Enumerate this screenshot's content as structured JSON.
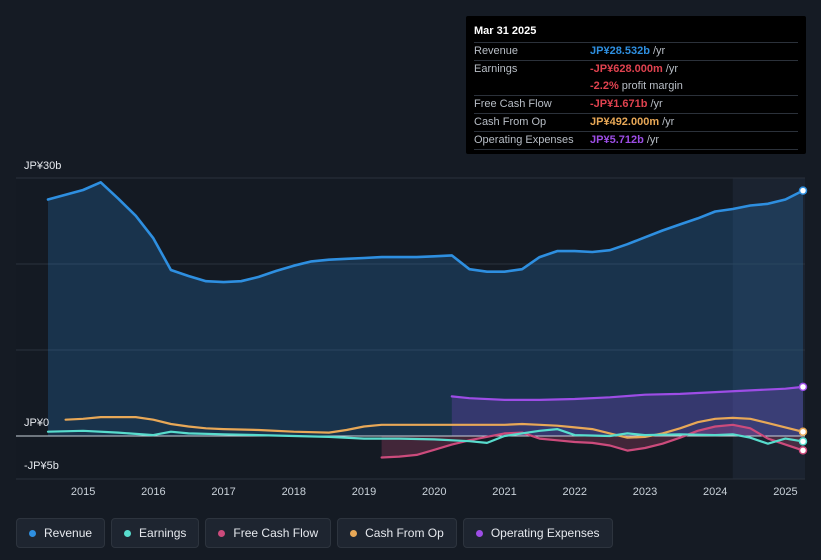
{
  "tooltip": {
    "date": "Mar 31 2025",
    "rows": [
      {
        "label": "Revenue",
        "value": "JP¥28.532b",
        "unit": "/yr",
        "color": "#2e8fe0"
      },
      {
        "label": "Earnings",
        "value": "-JP¥628.000m",
        "unit": "/yr",
        "color": "#e0424f"
      },
      {
        "label": "",
        "value": "-2.2%",
        "unit": "profit margin",
        "color": "#e0424f"
      },
      {
        "label": "Free Cash Flow",
        "value": "-JP¥1.671b",
        "unit": "/yr",
        "color": "#e0424f"
      },
      {
        "label": "Cash From Op",
        "value": "JP¥492.000m",
        "unit": "/yr",
        "color": "#e8a857"
      },
      {
        "label": "Operating Expenses",
        "value": "JP¥5.712b",
        "unit": "/yr",
        "color": "#9d4de6"
      }
    ]
  },
  "legend": [
    {
      "label": "Revenue",
      "color": "#2e8fe0"
    },
    {
      "label": "Earnings",
      "color": "#58dccd"
    },
    {
      "label": "Free Cash Flow",
      "color": "#cc4b7c"
    },
    {
      "label": "Cash From Op",
      "color": "#e8a857"
    },
    {
      "label": "Operating Expenses",
      "color": "#9d4de6"
    }
  ],
  "chart_data": {
    "type": "area",
    "title": "",
    "xlabel": "",
    "ylabel": "",
    "y_tick_labels": [
      "JP¥30b",
      "JP¥0",
      "-JP¥5b"
    ],
    "y_ticks": [
      30,
      0,
      -5
    ],
    "ylim": [
      -5,
      30
    ],
    "xlim": [
      2014.5,
      2025.25
    ],
    "x_ticks": [
      2015,
      2016,
      2017,
      2018,
      2019,
      2020,
      2021,
      2022,
      2023,
      2024,
      2025
    ],
    "x_tick_labels": [
      "2015",
      "2016",
      "2017",
      "2018",
      "2019",
      "2020",
      "2021",
      "2022",
      "2023",
      "2024",
      "2025"
    ],
    "forecast_start": 2024.25,
    "series": [
      {
        "name": "Revenue",
        "color": "#2e8fe0",
        "area": true,
        "points": [
          [
            2014.5,
            27.5
          ],
          [
            2015.0,
            28.6
          ],
          [
            2015.25,
            29.5
          ],
          [
            2015.5,
            27.6
          ],
          [
            2015.75,
            25.6
          ],
          [
            2016.0,
            23.0
          ],
          [
            2016.25,
            19.3
          ],
          [
            2016.5,
            18.6
          ],
          [
            2016.75,
            18.0
          ],
          [
            2017.0,
            17.9
          ],
          [
            2017.25,
            18.0
          ],
          [
            2017.5,
            18.5
          ],
          [
            2017.75,
            19.2
          ],
          [
            2018.0,
            19.8
          ],
          [
            2018.25,
            20.3
          ],
          [
            2018.5,
            20.5
          ],
          [
            2018.75,
            20.6
          ],
          [
            2019.0,
            20.7
          ],
          [
            2019.25,
            20.8
          ],
          [
            2019.5,
            20.8
          ],
          [
            2019.75,
            20.8
          ],
          [
            2020.0,
            20.9
          ],
          [
            2020.25,
            21.0
          ],
          [
            2020.5,
            19.4
          ],
          [
            2020.75,
            19.1
          ],
          [
            2021.0,
            19.1
          ],
          [
            2021.25,
            19.4
          ],
          [
            2021.5,
            20.8
          ],
          [
            2021.75,
            21.5
          ],
          [
            2022.0,
            21.5
          ],
          [
            2022.25,
            21.4
          ],
          [
            2022.5,
            21.6
          ],
          [
            2022.75,
            22.3
          ],
          [
            2023.0,
            23.1
          ],
          [
            2023.25,
            23.9
          ],
          [
            2023.5,
            24.6
          ],
          [
            2023.75,
            25.3
          ],
          [
            2024.0,
            26.1
          ],
          [
            2024.25,
            26.4
          ],
          [
            2024.5,
            26.8
          ],
          [
            2024.75,
            27.0
          ],
          [
            2025.0,
            27.5
          ],
          [
            2025.25,
            28.532
          ]
        ]
      },
      {
        "name": "Earnings",
        "color": "#58dccd",
        "area": false,
        "points": [
          [
            2014.5,
            0.5
          ],
          [
            2015.0,
            0.6
          ],
          [
            2015.5,
            0.4
          ],
          [
            2016.0,
            0.1
          ],
          [
            2016.25,
            0.5
          ],
          [
            2016.5,
            0.3
          ],
          [
            2017.0,
            0.2
          ],
          [
            2017.5,
            0.1
          ],
          [
            2018.0,
            0.0
          ],
          [
            2018.5,
            -0.1
          ],
          [
            2019.0,
            -0.3
          ],
          [
            2019.5,
            -0.3
          ],
          [
            2020.0,
            -0.4
          ],
          [
            2020.5,
            -0.6
          ],
          [
            2020.75,
            -0.8
          ],
          [
            2021.0,
            0.0
          ],
          [
            2021.5,
            0.6
          ],
          [
            2021.75,
            0.8
          ],
          [
            2022.0,
            0.1
          ],
          [
            2022.5,
            0.0
          ],
          [
            2022.75,
            0.3
          ],
          [
            2023.0,
            0.1
          ],
          [
            2023.5,
            0.2
          ],
          [
            2024.0,
            0.1
          ],
          [
            2024.25,
            0.2
          ],
          [
            2024.5,
            -0.2
          ],
          [
            2024.75,
            -0.9
          ],
          [
            2025.0,
            -0.3
          ],
          [
            2025.25,
            -0.628
          ]
        ]
      },
      {
        "name": "Free Cash Flow",
        "color": "#cc4b7c",
        "area": true,
        "points": [
          [
            2019.25,
            -2.5
          ],
          [
            2019.5,
            -2.4
          ],
          [
            2019.75,
            -2.2
          ],
          [
            2020.0,
            -1.6
          ],
          [
            2020.25,
            -1.0
          ],
          [
            2020.5,
            -0.5
          ],
          [
            2021.0,
            0.3
          ],
          [
            2021.25,
            0.4
          ],
          [
            2021.5,
            -0.3
          ],
          [
            2021.75,
            -0.5
          ],
          [
            2022.0,
            -0.7
          ],
          [
            2022.25,
            -0.8
          ],
          [
            2022.5,
            -1.1
          ],
          [
            2022.75,
            -1.7
          ],
          [
            2023.0,
            -1.4
          ],
          [
            2023.25,
            -0.9
          ],
          [
            2023.5,
            -0.2
          ],
          [
            2023.75,
            0.6
          ],
          [
            2024.0,
            1.1
          ],
          [
            2024.25,
            1.3
          ],
          [
            2024.5,
            0.9
          ],
          [
            2024.75,
            -0.3
          ],
          [
            2025.0,
            -1.0
          ],
          [
            2025.25,
            -1.671
          ]
        ]
      },
      {
        "name": "Cash From Op",
        "color": "#e8a857",
        "area": false,
        "points": [
          [
            2014.75,
            1.9
          ],
          [
            2015.0,
            2.0
          ],
          [
            2015.25,
            2.2
          ],
          [
            2015.75,
            2.2
          ],
          [
            2016.0,
            1.9
          ],
          [
            2016.25,
            1.4
          ],
          [
            2016.5,
            1.1
          ],
          [
            2016.75,
            0.9
          ],
          [
            2017.0,
            0.8
          ],
          [
            2017.5,
            0.7
          ],
          [
            2018.0,
            0.5
          ],
          [
            2018.5,
            0.4
          ],
          [
            2018.75,
            0.7
          ],
          [
            2019.0,
            1.1
          ],
          [
            2019.25,
            1.3
          ],
          [
            2019.5,
            1.3
          ],
          [
            2020.0,
            1.3
          ],
          [
            2020.5,
            1.3
          ],
          [
            2021.0,
            1.3
          ],
          [
            2021.25,
            1.4
          ],
          [
            2021.5,
            1.3
          ],
          [
            2021.75,
            1.2
          ],
          [
            2022.0,
            1.0
          ],
          [
            2022.25,
            0.8
          ],
          [
            2022.5,
            0.3
          ],
          [
            2022.75,
            -0.2
          ],
          [
            2023.0,
            -0.1
          ],
          [
            2023.25,
            0.3
          ],
          [
            2023.5,
            0.9
          ],
          [
            2023.75,
            1.6
          ],
          [
            2024.0,
            2.0
          ],
          [
            2024.25,
            2.1
          ],
          [
            2024.5,
            2.0
          ],
          [
            2024.75,
            1.5
          ],
          [
            2025.0,
            1.0
          ],
          [
            2025.25,
            0.492
          ]
        ]
      },
      {
        "name": "Operating Expenses",
        "color": "#9d4de6",
        "area": true,
        "points": [
          [
            2020.25,
            4.6
          ],
          [
            2020.5,
            4.4
          ],
          [
            2021.0,
            4.2
          ],
          [
            2021.5,
            4.2
          ],
          [
            2022.0,
            4.3
          ],
          [
            2022.5,
            4.5
          ],
          [
            2023.0,
            4.8
          ],
          [
            2023.5,
            4.9
          ],
          [
            2024.0,
            5.1
          ],
          [
            2024.5,
            5.3
          ],
          [
            2025.0,
            5.5
          ],
          [
            2025.25,
            5.712
          ]
        ]
      }
    ]
  }
}
